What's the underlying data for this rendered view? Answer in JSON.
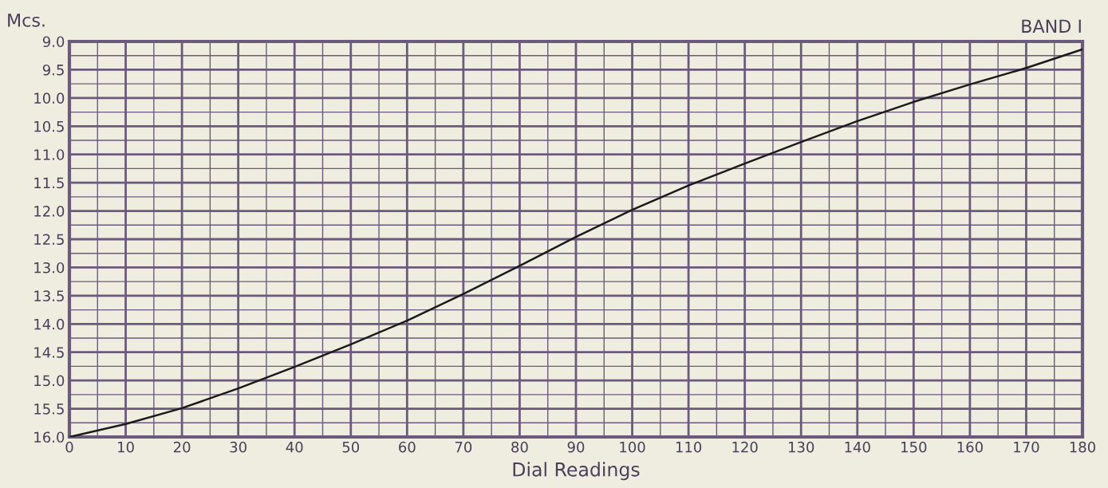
{
  "chart_data": {
    "type": "line",
    "title": "BAND I",
    "ylabel": "Mcs.",
    "xlabel": "Dial Readings",
    "x": [
      0,
      10,
      20,
      30,
      40,
      50,
      60,
      70,
      80,
      90,
      100,
      110,
      120,
      130,
      140,
      150,
      160,
      170,
      180
    ],
    "series": [
      {
        "color": "#1a1a1a",
        "values": [
          16.0,
          15.77,
          15.49,
          15.14,
          14.76,
          14.36,
          13.94,
          13.47,
          12.97,
          12.46,
          11.98,
          11.55,
          11.16,
          10.78,
          10.41,
          10.07,
          9.76,
          9.47,
          9.14
        ]
      }
    ],
    "xlim": [
      0,
      180
    ],
    "ylim": [
      16.0,
      9.0
    ],
    "xticks": [
      0,
      {
        "value": 5,
        "label": null
      },
      10,
      {
        "value": 15,
        "label": null
      },
      20,
      {
        "value": 25,
        "label": null
      },
      30,
      {
        "value": 35,
        "label": null
      },
      40,
      {
        "value": 45,
        "label": null
      },
      50,
      {
        "value": 55,
        "label": null
      },
      60,
      {
        "value": 65,
        "label": null
      },
      70,
      {
        "value": 75,
        "label": null
      },
      80,
      {
        "value": 85,
        "label": null
      },
      90,
      {
        "value": 95,
        "label": null
      },
      100,
      {
        "value": 105,
        "label": null
      },
      110,
      {
        "value": 115,
        "label": null
      },
      120,
      {
        "value": 125,
        "label": null
      },
      130,
      {
        "value": 135,
        "label": null
      },
      140,
      {
        "value": 145,
        "label": null
      },
      150,
      {
        "value": 155,
        "label": null
      },
      160,
      {
        "value": 165,
        "label": null
      },
      170,
      {
        "value": 175,
        "label": null
      },
      180
    ],
    "yticks": [
      {
        "value": 9,
        "label": "9.0"
      },
      {
        "value": 9.25,
        "label": null
      },
      9.5,
      {
        "value": 9.75,
        "label": null
      },
      {
        "value": 10,
        "label": "10.0"
      },
      {
        "value": 10.25,
        "label": null
      },
      10.5,
      {
        "value": 10.75,
        "label": null
      },
      {
        "value": 11,
        "label": "11.0"
      },
      {
        "value": 11.25,
        "label": null
      },
      11.5,
      {
        "value": 11.75,
        "label": null
      },
      {
        "value": 12,
        "label": "12.0"
      },
      {
        "value": 12.25,
        "label": null
      },
      12.5,
      {
        "value": 12.75,
        "label": null
      },
      {
        "value": 13,
        "label": "13.0"
      },
      {
        "value": 13.25,
        "label": null
      },
      13.5,
      {
        "value": 13.75,
        "label": null
      },
      {
        "value": 14,
        "label": "14.0"
      },
      {
        "value": 14.25,
        "label": null
      },
      14.5,
      {
        "value": 14.75,
        "label": null
      },
      {
        "value": 15,
        "label": "15.0"
      },
      {
        "value": 15.25,
        "label": null
      },
      15.5,
      {
        "value": 15.75,
        "label": null
      },
      {
        "value": 16,
        "label": "16.0"
      }
    ],
    "grid": true,
    "line_style": "solid",
    "marker": "none",
    "legend": false
  }
}
